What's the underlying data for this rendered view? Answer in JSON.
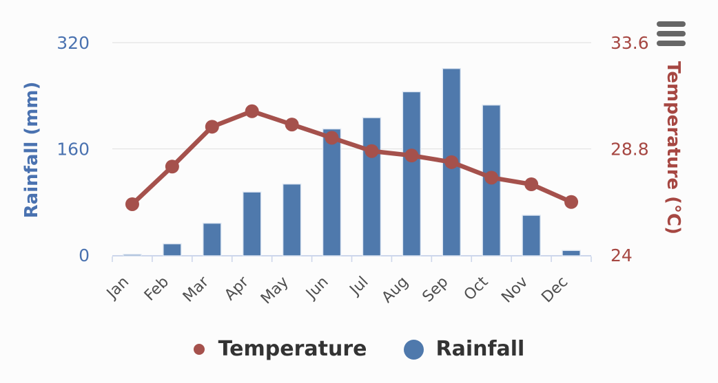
{
  "chart_data": {
    "type": "combo",
    "categories": [
      "Jan",
      "Feb",
      "Mar",
      "Apr",
      "May",
      "Jun",
      "Jul",
      "Aug",
      "Sep",
      "Oct",
      "Nov",
      "Dec"
    ],
    "series": [
      {
        "name": "Rainfall",
        "type": "bar",
        "yaxis": "left",
        "color": "#4f79ac",
        "values": [
          1,
          17,
          48,
          95,
          107,
          190,
          207,
          246,
          281,
          226,
          60,
          7
        ]
      },
      {
        "name": "Temperature",
        "type": "line",
        "yaxis": "right",
        "color": "#a5514c",
        "values": [
          26.3,
          28.0,
          29.8,
          30.5,
          29.9,
          29.3,
          28.7,
          28.5,
          28.2,
          27.5,
          27.2,
          26.4
        ]
      }
    ],
    "left_axis": {
      "title": "Rainfall (mm)",
      "range": [
        0,
        320
      ],
      "tick_values": [
        0,
        160,
        320
      ],
      "tick_labels": [
        "0",
        "160",
        "320"
      ],
      "color": "#4a72b0"
    },
    "right_axis": {
      "title": "Temperature (°C)",
      "range": [
        24,
        33.6
      ],
      "tick_values": [
        24,
        28.8,
        33.6
      ],
      "tick_labels": [
        "24",
        "28.8",
        "33.6"
      ],
      "color": "#a64742"
    },
    "x_axis": {
      "label_rotation": -45,
      "label_color": "#4e4e4e"
    },
    "legend": {
      "position": "bottom",
      "items": [
        {
          "label": "Temperature",
          "color": "#a5514c"
        },
        {
          "label": "Rainfall",
          "color": "#4f79ac"
        }
      ]
    },
    "grid": "horizontal"
  },
  "menu": {
    "icon": "hamburger-menu",
    "color": "#666666"
  },
  "colors": {
    "background": "#fcfcfc",
    "axis_line": "#ccd6eb",
    "gridline": "#e4e4e4",
    "bar_border": "#dde6f2",
    "legend_text": "#333333"
  }
}
